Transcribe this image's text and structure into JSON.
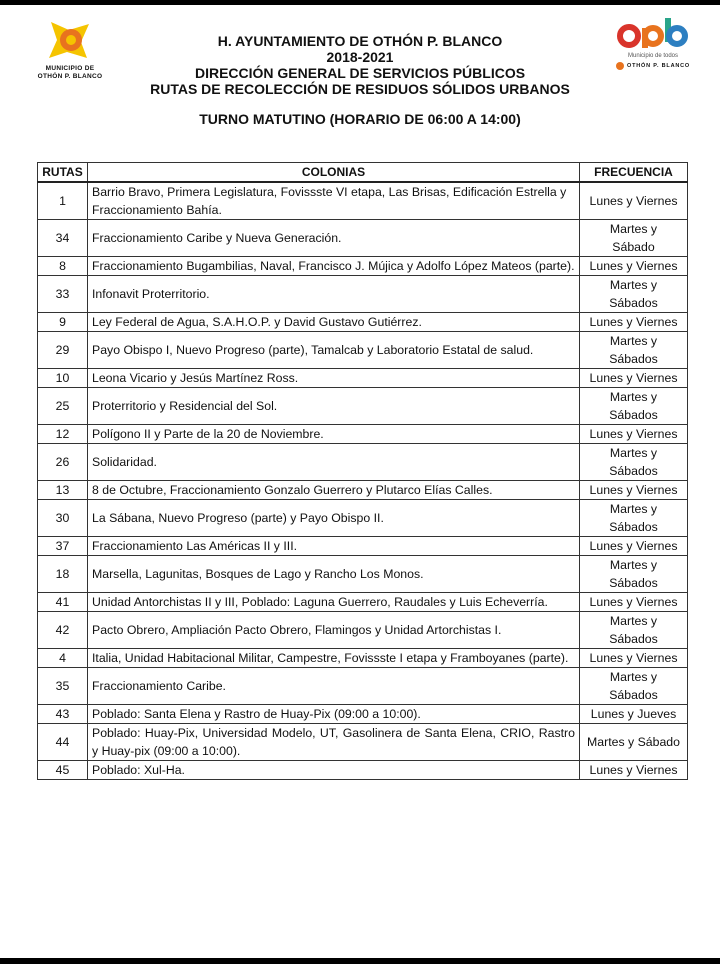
{
  "logos": {
    "left_caption": [
      "MUNICIPIO DE",
      "OTHÓN P. BLANCO"
    ],
    "right_brand": "opb",
    "right_tagline": "Municipio de todos",
    "right_sub": "OTHÓN P. BLANCO"
  },
  "header": {
    "line1": "H. AYUNTAMIENTO DE OTHÓN P. BLANCO",
    "line2": "2018-2021",
    "line3": "DIRECCIÓN GENERAL DE SERVICIOS PÚBLICOS",
    "line4": "RUTAS DE RECOLECCIÓN DE RESIDUOS SÓLIDOS URBANOS",
    "turno": "TURNO MATUTINO (HORARIO DE 06:00 A 14:00)"
  },
  "table": {
    "columns": [
      "RUTAS",
      "COLONIAS",
      "FRECUENCIA"
    ],
    "rows": [
      {
        "ruta": "1",
        "colonias": "Barrio Bravo, Primera Legislatura,  Fovissste VI etapa, Las Brisas,  Edificación Estrella y Fraccionamiento Bahía.",
        "frecuencia": "Lunes y Viernes"
      },
      {
        "ruta": "34",
        "colonias": "Fraccionamiento Caribe y Nueva Generación.",
        "frecuencia": "Martes y\nSábado"
      },
      {
        "ruta": "8",
        "colonias": "Fraccionamiento Bugambilias, Naval, Francisco J. Mújica y Adolfo López Mateos (parte).",
        "frecuencia": "Lunes y Viernes"
      },
      {
        "ruta": "33",
        "colonias": "Infonavit Proterritorio.",
        "frecuencia": "Martes y\nSábados"
      },
      {
        "ruta": "9",
        "colonias": "Ley Federal de Agua, S.A.H.O.P. y David Gustavo Gutiérrez.",
        "frecuencia": "Lunes y Viernes"
      },
      {
        "ruta": "29",
        "colonias": "Payo Obispo I, Nuevo Progreso (parte), Tamalcab y Laboratorio Estatal de salud.",
        "frecuencia": "Martes y\nSábados"
      },
      {
        "ruta": "10",
        "colonias": "Leona Vicario y Jesús Martínez Ross.",
        "frecuencia": "Lunes y Viernes"
      },
      {
        "ruta": "25",
        "colonias": "Proterritorio y Residencial del Sol.",
        "frecuencia": "Martes y\nSábados"
      },
      {
        "ruta": "12",
        "colonias": "Polígono II y Parte de la 20 de Noviembre.",
        "frecuencia": "Lunes y Viernes"
      },
      {
        "ruta": "26",
        "colonias": "Solidaridad.",
        "frecuencia": "Martes y\nSábados"
      },
      {
        "ruta": "13",
        "colonias": "8 de Octubre, Fraccionamiento Gonzalo Guerrero y Plutarco Elías Calles.",
        "frecuencia": "Lunes y Viernes"
      },
      {
        "ruta": "30",
        "colonias": "La Sábana, Nuevo Progreso (parte) y Payo Obispo II.",
        "frecuencia": "Martes y\nSábados"
      },
      {
        "ruta": "37",
        "colonias": "Fraccionamiento Las Américas II y III.",
        "frecuencia": "Lunes y Viernes"
      },
      {
        "ruta": "18",
        "colonias": "Marsella, Lagunitas, Bosques de Lago y Rancho Los Monos.",
        "frecuencia": "Martes y\nSábados"
      },
      {
        "ruta": "41",
        "colonias": "Unidad Antorchistas II y III, Poblado: Laguna Guerrero, Raudales y Luis Echeverría.",
        "frecuencia": "Lunes y Viernes"
      },
      {
        "ruta": "42",
        "colonias": "Pacto Obrero, Ampliación Pacto Obrero, Flamingos y Unidad Artorchistas I.",
        "frecuencia": "Martes y\nSábados"
      },
      {
        "ruta": "4",
        "colonias": "Italia, Unidad Habitacional Militar, Campestre, Fovissste I etapa y Framboyanes (parte).",
        "frecuencia": "Lunes y Viernes"
      },
      {
        "ruta": "35",
        "colonias": "Fraccionamiento Caribe.",
        "frecuencia": "Martes y\nSábados"
      },
      {
        "ruta": "43",
        "colonias": "Poblado: Santa Elena y Rastro de Huay-Pix (09:00 a 10:00).",
        "frecuencia": "Lunes y Jueves"
      },
      {
        "ruta": "44",
        "colonias": "Poblado: Huay-Pix, Universidad Modelo, UT, Gasolinera de Santa Elena, CRIO, Rastro y Huay-pix (09:00 a 10:00).",
        "frecuencia": "Martes y Sábado"
      },
      {
        "ruta": "45",
        "colonias": "Poblado: Xul-Ha.",
        "frecuencia": "Lunes y Viernes"
      }
    ]
  },
  "colors": {
    "logo_yellow": "#f5c400",
    "logo_orange": "#e8731e",
    "opb_red": "#d9342b",
    "opb_green": "#2aa58a",
    "opb_blue": "#2d7fc1"
  }
}
